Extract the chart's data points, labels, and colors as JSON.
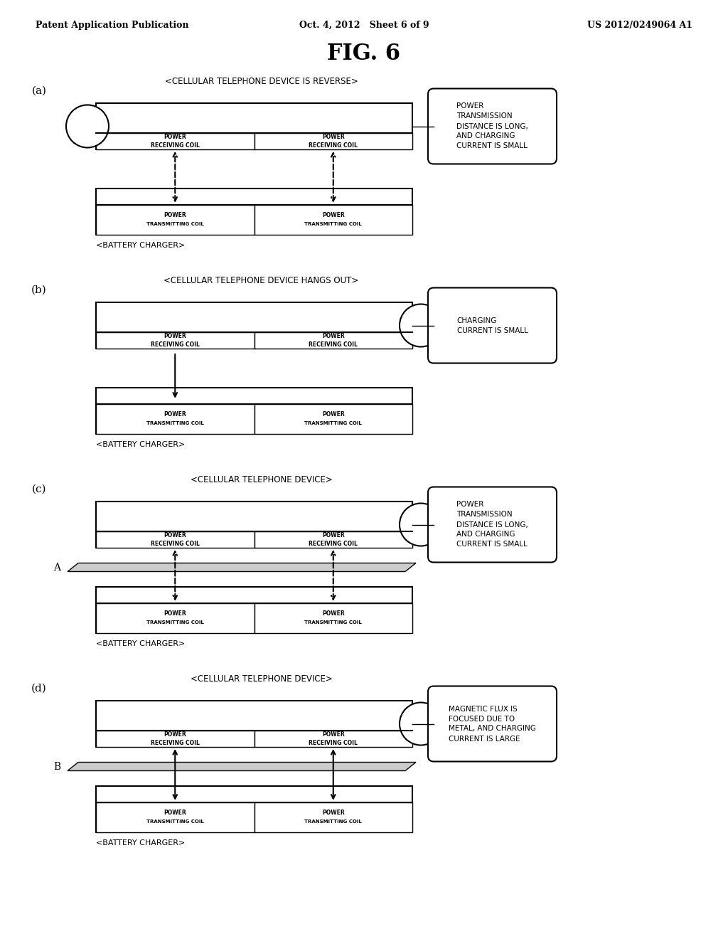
{
  "title": "FIG. 6",
  "header_left": "Patent Application Publication",
  "header_center": "Oct. 4, 2012   Sheet 6 of 9",
  "header_right": "US 2012/0249064 A1",
  "bg_color": "#ffffff",
  "panels": [
    {
      "label": "(a)",
      "subtitle": "<CELLULAR TELEPHONE DEVICE IS REVERSE>",
      "battery_label": "<BATTERY CHARGER>",
      "note": "POWER\nTRANSMISSION\nDISTANCE IS LONG,\nAND CHARGING\nCURRENT IS SMALL",
      "circle_side": "left",
      "arrow_type": "dashed",
      "arrow_double": true,
      "has_metal": false
    },
    {
      "label": "(b)",
      "subtitle": "<CELLULAR TELEPHONE DEVICE HANGS OUT>",
      "battery_label": "<BATTERY CHARGER>",
      "note": "CHARGING\nCURRENT IS SMALL",
      "circle_side": "right",
      "arrow_type": "solid",
      "arrow_double": false,
      "has_metal": false
    },
    {
      "label": "(c)",
      "subtitle": "<CELLULAR TELEPHONE DEVICE>",
      "battery_label": "<BATTERY CHARGER>",
      "note": "POWER\nTRANSMISSION\nDISTANCE IS LONG,\nAND CHARGING\nCURRENT IS SMALL",
      "circle_side": "right",
      "arrow_type": "dashed",
      "arrow_double": true,
      "has_metal": true,
      "metal_label": "A"
    },
    {
      "label": "(d)",
      "subtitle": "<CELLULAR TELEPHONE DEVICE>",
      "battery_label": "<BATTERY CHARGER>",
      "note": "MAGNETIC FLUX IS\nFOCUSED DUE TO\nMETAL, AND CHARGING\nCURRENT IS LARGE",
      "circle_side": "right",
      "arrow_type": "solid",
      "arrow_double": true,
      "has_metal": true,
      "metal_label": "B"
    }
  ]
}
